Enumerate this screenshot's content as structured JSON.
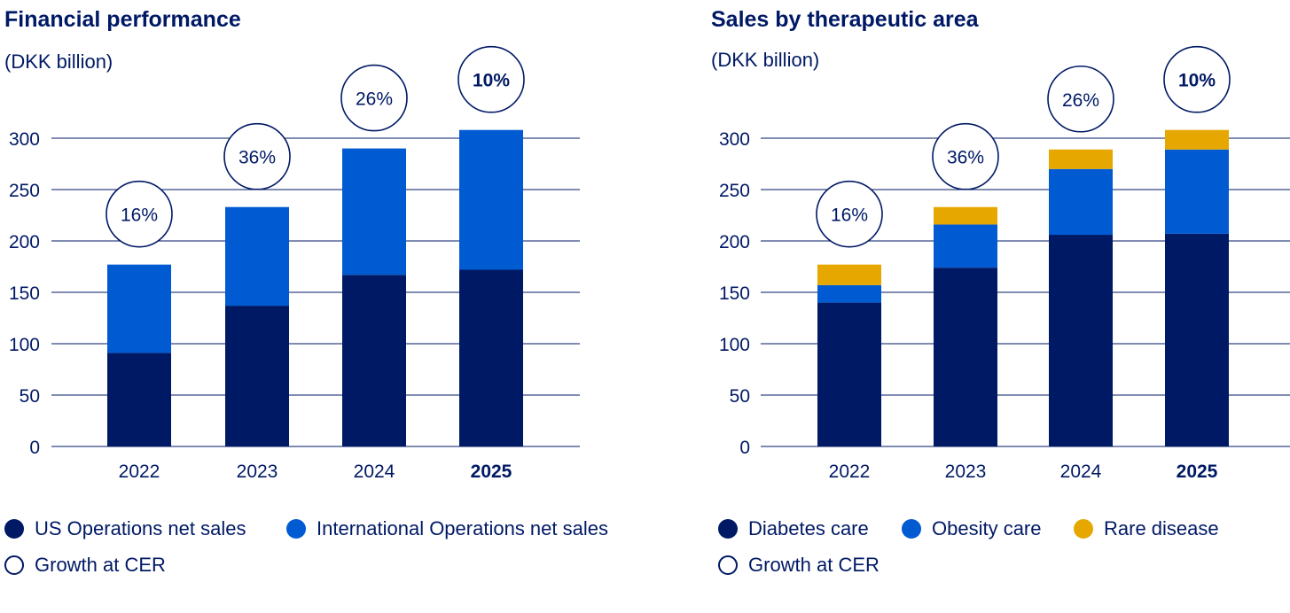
{
  "colors": {
    "us": "#001965",
    "intl": "#005ad2",
    "diabetes": "#001965",
    "obesity": "#005ad2",
    "rare": "#e6a800",
    "grid": "#001965"
  },
  "left": {
    "title": "Financial performance",
    "unit": "(DKK billion)",
    "legend": {
      "us": "US Operations net sales",
      "intl": "International Operations net sales",
      "growth": "Growth at CER"
    }
  },
  "right": {
    "title": "Sales by therapeutic area",
    "unit": "(DKK billion)",
    "legend": {
      "diabetes": "Diabetes care",
      "obesity": "Obesity care",
      "rare": "Rare disease",
      "growth": "Growth at CER"
    }
  },
  "chart_data": [
    {
      "type": "bar",
      "stacked": true,
      "title": "Financial performance",
      "ylabel": "(DKK billion)",
      "categories": [
        "2022",
        "2023",
        "2024",
        "2025"
      ],
      "highlight_category": "2025",
      "ylim": [
        0,
        300
      ],
      "yticks": [
        0,
        50,
        100,
        150,
        200,
        250,
        300
      ],
      "series": [
        {
          "name": "US Operations net sales",
          "color_key": "us",
          "values": [
            91,
            137,
            167,
            172
          ]
        },
        {
          "name": "International Operations net sales",
          "color_key": "intl",
          "values": [
            86,
            96,
            123,
            136
          ]
        }
      ],
      "growth_labels": [
        "16%",
        "36%",
        "26%",
        "10%"
      ],
      "legend_position": "bottom"
    },
    {
      "type": "bar",
      "stacked": true,
      "title": "Sales by therapeutic area",
      "ylabel": "(DKK billion)",
      "categories": [
        "2022",
        "2023",
        "2024",
        "2025"
      ],
      "highlight_category": "2025",
      "ylim": [
        0,
        300
      ],
      "yticks": [
        0,
        50,
        100,
        150,
        200,
        250,
        300
      ],
      "series": [
        {
          "name": "Diabetes care",
          "color_key": "diabetes",
          "values": [
            140,
            174,
            206,
            207
          ]
        },
        {
          "name": "Obesity care",
          "color_key": "obesity",
          "values": [
            17,
            42,
            64,
            82
          ]
        },
        {
          "name": "Rare disease",
          "color_key": "rare",
          "values": [
            20,
            17,
            19,
            19
          ]
        }
      ],
      "growth_labels": [
        "16%",
        "36%",
        "26%",
        "10%"
      ],
      "legend_position": "bottom"
    }
  ]
}
